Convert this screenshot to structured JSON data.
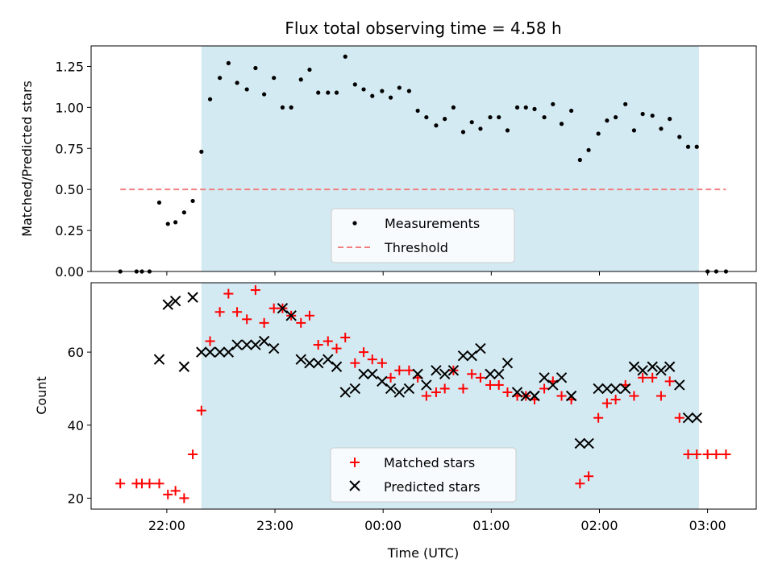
{
  "chart_data": [
    {
      "type": "scatter",
      "title": "Flux total observing time = 4.58 h",
      "ylabel": "Matched/Predicted stars",
      "xlabel": "",
      "x_unit": "hours since midnight UTC (negative = previous day)",
      "xlim": [
        -2.7,
        3.45
      ],
      "ylim": [
        0.0,
        1.375
      ],
      "yticks": [
        "0.00",
        "0.25",
        "0.50",
        "0.75",
        "1.00",
        "1.25"
      ],
      "shaded_span": {
        "x": [
          -1.68,
          2.92
        ],
        "color": "#d4eaf2"
      },
      "threshold": {
        "name": "Threshold",
        "y": 0.5,
        "x": [
          -2.43,
          3.17
        ],
        "color": "#f08080"
      },
      "series": [
        {
          "name": "Measurements",
          "color": "#000000",
          "marker": "dot",
          "points": [
            [
              -2.43,
              0.0
            ],
            [
              -2.28,
              0.0
            ],
            [
              -2.23,
              0.0
            ],
            [
              -2.16,
              0.0
            ],
            [
              -2.07,
              0.42
            ],
            [
              -1.99,
              0.29
            ],
            [
              -1.92,
              0.3
            ],
            [
              -1.84,
              0.36
            ],
            [
              -1.76,
              0.43
            ],
            [
              -1.68,
              0.73
            ],
            [
              -1.6,
              1.05
            ],
            [
              -1.51,
              1.18
            ],
            [
              -1.43,
              1.27
            ],
            [
              -1.35,
              1.15
            ],
            [
              -1.26,
              1.11
            ],
            [
              -1.18,
              1.24
            ],
            [
              -1.1,
              1.08
            ],
            [
              -1.01,
              1.18
            ],
            [
              -0.93,
              1.0
            ],
            [
              -0.85,
              1.0
            ],
            [
              -0.76,
              1.17
            ],
            [
              -0.68,
              1.23
            ],
            [
              -0.6,
              1.09
            ],
            [
              -0.51,
              1.09
            ],
            [
              -0.43,
              1.09
            ],
            [
              -0.35,
              1.31
            ],
            [
              -0.26,
              1.14
            ],
            [
              -0.18,
              1.11
            ],
            [
              -0.1,
              1.07
            ],
            [
              -0.01,
              1.1
            ],
            [
              0.07,
              1.06
            ],
            [
              0.15,
              1.12
            ],
            [
              0.24,
              1.1
            ],
            [
              0.32,
              0.98
            ],
            [
              0.4,
              0.94
            ],
            [
              0.49,
              0.89
            ],
            [
              0.57,
              0.93
            ],
            [
              0.65,
              1.0
            ],
            [
              0.74,
              0.85
            ],
            [
              0.82,
              0.91
            ],
            [
              0.9,
              0.87
            ],
            [
              0.99,
              0.94
            ],
            [
              1.07,
              0.94
            ],
            [
              1.15,
              0.86
            ],
            [
              1.24,
              1.0
            ],
            [
              1.32,
              1.0
            ],
            [
              1.4,
              0.99
            ],
            [
              1.49,
              0.94
            ],
            [
              1.57,
              1.02
            ],
            [
              1.65,
              0.9
            ],
            [
              1.74,
              0.98
            ],
            [
              1.82,
              0.68
            ],
            [
              1.9,
              0.74
            ],
            [
              1.99,
              0.84
            ],
            [
              2.07,
              0.92
            ],
            [
              2.15,
              0.94
            ],
            [
              2.24,
              1.02
            ],
            [
              2.32,
              0.86
            ],
            [
              2.4,
              0.96
            ],
            [
              2.49,
              0.95
            ],
            [
              2.57,
              0.87
            ],
            [
              2.65,
              0.93
            ],
            [
              2.74,
              0.82
            ],
            [
              2.82,
              0.76
            ],
            [
              2.9,
              0.76
            ],
            [
              3.0,
              0.0
            ],
            [
              3.08,
              0.0
            ],
            [
              3.17,
              0.0
            ]
          ]
        }
      ],
      "legend": {
        "placement": "lower-center",
        "entries": [
          "Measurements",
          "Threshold"
        ]
      }
    },
    {
      "type": "scatter",
      "title": "",
      "ylabel": "Count",
      "xlabel": "Time (UTC)",
      "x_unit": "hours since midnight UTC (negative = previous day)",
      "xlim": [
        -2.7,
        3.45
      ],
      "ylim": [
        17,
        79
      ],
      "yticks": [
        "20",
        "40",
        "60"
      ],
      "xticks": [
        {
          "x": -2.0,
          "label": "22:00"
        },
        {
          "x": -1.0,
          "label": "23:00"
        },
        {
          "x": 0.0,
          "label": "00:00"
        },
        {
          "x": 1.0,
          "label": "01:00"
        },
        {
          "x": 2.0,
          "label": "02:00"
        },
        {
          "x": 3.0,
          "label": "03:00"
        }
      ],
      "shaded_span": {
        "x": [
          -1.68,
          2.92
        ],
        "color": "#d4eaf2"
      },
      "series": [
        {
          "name": "Matched stars",
          "color": "#ff0000",
          "marker": "plus",
          "points": [
            [
              -2.43,
              24
            ],
            [
              -2.28,
              24
            ],
            [
              -2.23,
              24
            ],
            [
              -2.16,
              24
            ],
            [
              -2.07,
              24
            ],
            [
              -1.99,
              21
            ],
            [
              -1.92,
              22
            ],
            [
              -1.84,
              20
            ],
            [
              -1.76,
              32
            ],
            [
              -1.68,
              44
            ],
            [
              -1.6,
              63
            ],
            [
              -1.51,
              71
            ],
            [
              -1.43,
              76
            ],
            [
              -1.35,
              71
            ],
            [
              -1.26,
              69
            ],
            [
              -1.18,
              77
            ],
            [
              -1.1,
              68
            ],
            [
              -1.01,
              72
            ],
            [
              -0.93,
              72
            ],
            [
              -0.85,
              70
            ],
            [
              -0.76,
              68
            ],
            [
              -0.68,
              70
            ],
            [
              -0.6,
              62
            ],
            [
              -0.51,
              63
            ],
            [
              -0.43,
              61
            ],
            [
              -0.35,
              64
            ],
            [
              -0.26,
              57
            ],
            [
              -0.18,
              60
            ],
            [
              -0.1,
              58
            ],
            [
              -0.01,
              57
            ],
            [
              0.07,
              53
            ],
            [
              0.15,
              55
            ],
            [
              0.24,
              55
            ],
            [
              0.32,
              53
            ],
            [
              0.4,
              48
            ],
            [
              0.49,
              49
            ],
            [
              0.57,
              50
            ],
            [
              0.65,
              55
            ],
            [
              0.74,
              50
            ],
            [
              0.82,
              54
            ],
            [
              0.9,
              53
            ],
            [
              0.99,
              51
            ],
            [
              1.07,
              51
            ],
            [
              1.15,
              49
            ],
            [
              1.24,
              48
            ],
            [
              1.32,
              48
            ],
            [
              1.4,
              47
            ],
            [
              1.49,
              50
            ],
            [
              1.57,
              52
            ],
            [
              1.65,
              48
            ],
            [
              1.74,
              47
            ],
            [
              1.82,
              24
            ],
            [
              1.9,
              26
            ],
            [
              1.99,
              42
            ],
            [
              2.07,
              46
            ],
            [
              2.15,
              47
            ],
            [
              2.24,
              51
            ],
            [
              2.32,
              48
            ],
            [
              2.4,
              53
            ],
            [
              2.49,
              53
            ],
            [
              2.57,
              48
            ],
            [
              2.65,
              52
            ],
            [
              2.74,
              42
            ],
            [
              2.82,
              32
            ],
            [
              2.9,
              32
            ],
            [
              3.0,
              32
            ],
            [
              3.08,
              32
            ],
            [
              3.17,
              32
            ]
          ]
        },
        {
          "name": "Predicted stars",
          "color": "#000000",
          "marker": "cross",
          "points": [
            [
              -2.07,
              58
            ],
            [
              -1.99,
              73
            ],
            [
              -1.92,
              74
            ],
            [
              -1.84,
              56
            ],
            [
              -1.76,
              75
            ],
            [
              -1.68,
              60
            ],
            [
              -1.6,
              60
            ],
            [
              -1.51,
              60
            ],
            [
              -1.43,
              60
            ],
            [
              -1.35,
              62
            ],
            [
              -1.26,
              62
            ],
            [
              -1.18,
              62
            ],
            [
              -1.1,
              63
            ],
            [
              -1.01,
              61
            ],
            [
              -0.93,
              72
            ],
            [
              -0.85,
              70
            ],
            [
              -0.76,
              58
            ],
            [
              -0.68,
              57
            ],
            [
              -0.6,
              57
            ],
            [
              -0.51,
              58
            ],
            [
              -0.43,
              56
            ],
            [
              -0.35,
              49
            ],
            [
              -0.26,
              50
            ],
            [
              -0.18,
              54
            ],
            [
              -0.1,
              54
            ],
            [
              -0.01,
              52
            ],
            [
              0.07,
              50
            ],
            [
              0.15,
              49
            ],
            [
              0.24,
              50
            ],
            [
              0.32,
              54
            ],
            [
              0.4,
              51
            ],
            [
              0.49,
              55
            ],
            [
              0.57,
              54
            ],
            [
              0.65,
              55
            ],
            [
              0.74,
              59
            ],
            [
              0.82,
              59
            ],
            [
              0.9,
              61
            ],
            [
              0.99,
              54
            ],
            [
              1.07,
              54
            ],
            [
              1.15,
              57
            ],
            [
              1.24,
              49
            ],
            [
              1.32,
              48
            ],
            [
              1.4,
              48
            ],
            [
              1.49,
              53
            ],
            [
              1.57,
              51
            ],
            [
              1.65,
              53
            ],
            [
              1.74,
              48
            ],
            [
              1.82,
              35
            ],
            [
              1.9,
              35
            ],
            [
              1.99,
              50
            ],
            [
              2.07,
              50
            ],
            [
              2.15,
              50
            ],
            [
              2.24,
              50
            ],
            [
              2.32,
              56
            ],
            [
              2.4,
              55
            ],
            [
              2.49,
              56
            ],
            [
              2.57,
              55
            ],
            [
              2.65,
              56
            ],
            [
              2.74,
              51
            ],
            [
              2.82,
              42
            ],
            [
              2.9,
              42
            ]
          ]
        }
      ],
      "legend": {
        "placement": "lower-center",
        "entries": [
          "Matched stars",
          "Predicted stars"
        ]
      }
    }
  ]
}
